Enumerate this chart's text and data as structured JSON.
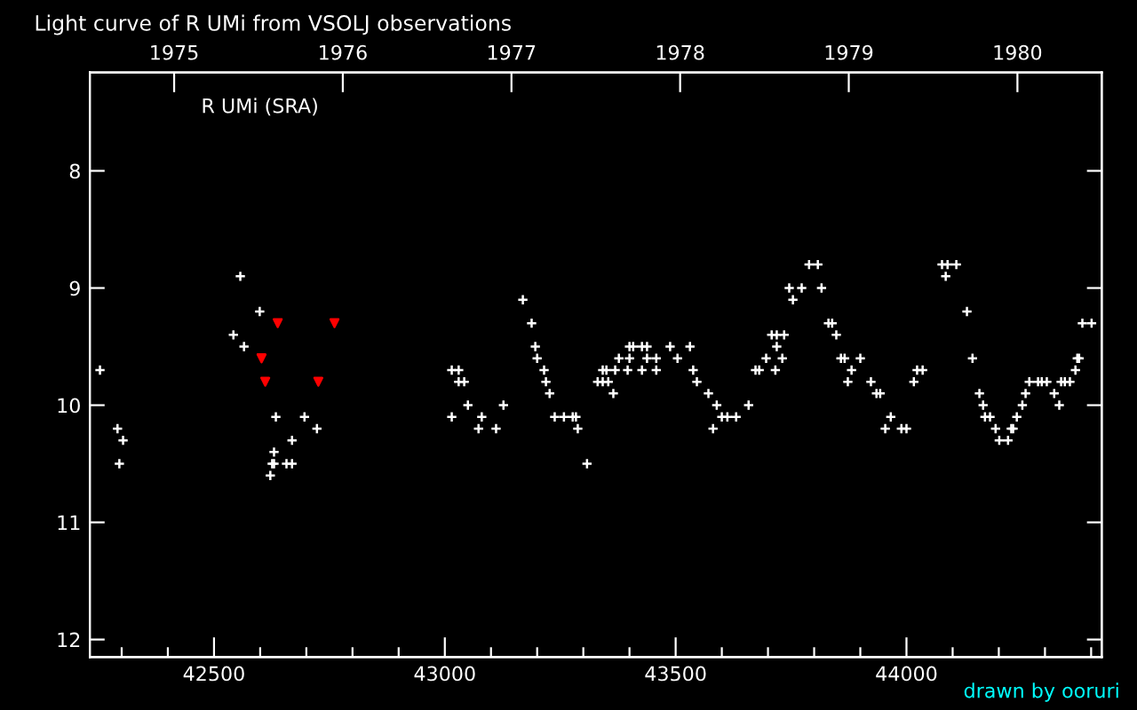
{
  "chart_data": {
    "type": "scatter",
    "title": "Light curve of R UMi from VSOLJ observations",
    "annotations": [
      "R UMi (SRA)",
      "drawn by ooruri"
    ],
    "xlim": [
      42231,
      44423
    ],
    "ylim": [
      12.15,
      7.16
    ],
    "xticks": [
      {
        "value": 42300,
        "label": null
      },
      {
        "value": 42400,
        "label": null
      },
      42500,
      {
        "value": 42600,
        "label": null
      },
      {
        "value": 42700,
        "label": null
      },
      {
        "value": 42800,
        "label": null
      },
      {
        "value": 42900,
        "label": null
      },
      43000,
      {
        "value": 43100,
        "label": null
      },
      {
        "value": 43200,
        "label": null
      },
      {
        "value": 43300,
        "label": null
      },
      {
        "value": 43400,
        "label": null
      },
      43500,
      {
        "value": 43600,
        "label": null
      },
      {
        "value": 43700,
        "label": null
      },
      {
        "value": 43800,
        "label": null
      },
      {
        "value": 43900,
        "label": null
      },
      44000,
      {
        "value": 44100,
        "label": null
      },
      {
        "value": 44200,
        "label": null
      },
      {
        "value": 44300,
        "label": null
      },
      {
        "value": 44400,
        "label": null
      }
    ],
    "yticks": [
      8,
      9,
      10,
      11,
      12
    ],
    "x2lim": [
      1974.5,
      1980.5
    ],
    "x2ticks": [
      1975,
      1976,
      1977,
      1978,
      1979,
      1980
    ],
    "grid": false,
    "legend": false,
    "series": [
      {
        "color": "#ffffff",
        "marker": "cross",
        "x": [
          42253,
          42291,
          42303,
          42295,
          42542,
          42557,
          42565,
          42599,
          42622,
          42626,
          42630,
          42630,
          42634,
          42657,
          42669,
          42669,
          42696,
          42723,
          43015,
          43015,
          43030,
          43030,
          43042,
          43050,
          43073,
          43080,
          43111,
          43127,
          43169,
          43188,
          43196,
          43200,
          43215,
          43219,
          43227,
          43238,
          43258,
          43277,
          43284,
          43288,
          43308,
          43331,
          43342,
          43342,
          43350,
          43354,
          43365,
          43369,
          43377,
          43396,
          43400,
          43400,
          43408,
          43427,
          43427,
          43438,
          43438,
          43458,
          43458,
          43488,
          43504,
          43531,
          43538,
          43546,
          43571,
          43581,
          43589,
          43600,
          43612,
          43631,
          43658,
          43673,
          43681,
          43696,
          43708,
          43716,
          43719,
          43719,
          43731,
          43735,
          43746,
          43754,
          43773,
          43789,
          43808,
          43816,
          43831,
          43839,
          43848,
          43858,
          43866,
          43873,
          43881,
          43900,
          43923,
          43935,
          43943,
          43954,
          43966,
          43989,
          44000,
          44016,
          44023,
          44035,
          44077,
          44085,
          44089,
          44108,
          44131,
          44143,
          44158,
          44166,
          44170,
          44181,
          44193,
          44201,
          44220,
          44227,
          44231,
          44239,
          44251,
          44258,
          44266,
          44285,
          44293,
          44304,
          44320,
          44331,
          44335,
          44343,
          44354,
          44366,
          44370,
          44374,
          44381,
          44401
        ],
        "values": [
          9.7,
          10.2,
          10.3,
          10.5,
          9.4,
          8.9,
          9.5,
          9.2,
          10.6,
          10.5,
          10.4,
          10.5,
          10.1,
          10.5,
          10.3,
          10.5,
          10.1,
          10.2,
          9.7,
          10.1,
          9.7,
          9.8,
          9.8,
          10.0,
          10.2,
          10.1,
          10.2,
          10.0,
          9.1,
          9.3,
          9.5,
          9.6,
          9.7,
          9.8,
          9.9,
          10.1,
          10.1,
          10.1,
          10.1,
          10.2,
          10.5,
          9.8,
          9.8,
          9.7,
          9.7,
          9.8,
          9.9,
          9.7,
          9.6,
          9.7,
          9.6,
          9.5,
          9.5,
          9.5,
          9.7,
          9.5,
          9.6,
          9.6,
          9.7,
          9.5,
          9.6,
          9.5,
          9.7,
          9.8,
          9.9,
          10.2,
          10.0,
          10.1,
          10.1,
          10.1,
          10.0,
          9.7,
          9.7,
          9.6,
          9.4,
          9.7,
          9.4,
          9.5,
          9.6,
          9.4,
          9.0,
          9.1,
          9.0,
          8.8,
          8.8,
          9.0,
          9.3,
          9.3,
          9.4,
          9.6,
          9.6,
          9.8,
          9.7,
          9.6,
          9.8,
          9.9,
          9.9,
          10.2,
          10.1,
          10.2,
          10.2,
          9.8,
          9.7,
          9.7,
          8.8,
          8.9,
          8.8,
          8.8,
          9.2,
          9.6,
          9.9,
          10.0,
          10.1,
          10.1,
          10.2,
          10.3,
          10.3,
          10.2,
          10.2,
          10.1,
          10.0,
          9.9,
          9.8,
          9.8,
          9.8,
          9.8,
          9.9,
          10.0,
          9.8,
          9.8,
          9.8,
          9.7,
          9.6,
          9.6,
          9.3,
          9.3
        ]
      },
      {
        "color": "#ff0000",
        "marker": "triangle",
        "x": [
          42603,
          42611,
          42638,
          42726,
          42761
        ],
        "values": [
          9.6,
          9.8,
          9.3,
          9.8,
          9.3
        ]
      }
    ]
  }
}
